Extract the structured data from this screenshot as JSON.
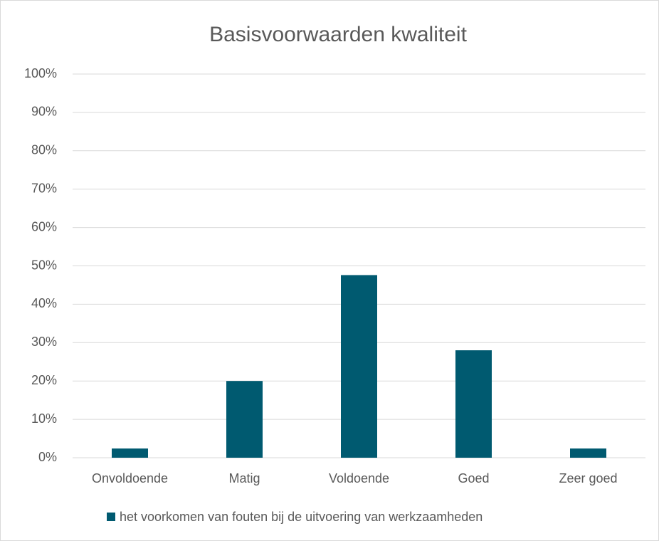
{
  "chart_data": {
    "type": "bar",
    "title": "Basisvoorwaarden kwaliteit",
    "categories": [
      "Onvoldoende",
      "Matig",
      "Voldoende",
      "Goed",
      "Zeer goed"
    ],
    "series": [
      {
        "name": "het voorkomen van fouten bij de uitvoering van werkzaamheden",
        "color": "#005a70",
        "values": [
          2.4,
          20,
          47.6,
          28,
          2.4
        ]
      }
    ],
    "ylim": [
      0,
      100
    ],
    "yticks": [
      {
        "value": 0,
        "label": "0%"
      },
      {
        "value": 10,
        "label": "10%"
      },
      {
        "value": 20,
        "label": "20%"
      },
      {
        "value": 30,
        "label": "30%"
      },
      {
        "value": 40,
        "label": "40%"
      },
      {
        "value": 50,
        "label": "50%"
      },
      {
        "value": 60,
        "label": "60%"
      },
      {
        "value": 70,
        "label": "70%"
      },
      {
        "value": 80,
        "label": "80%"
      },
      {
        "value": 90,
        "label": "90%"
      },
      {
        "value": 100,
        "label": "100%"
      }
    ],
    "grid": true,
    "legend": "bottom"
  }
}
